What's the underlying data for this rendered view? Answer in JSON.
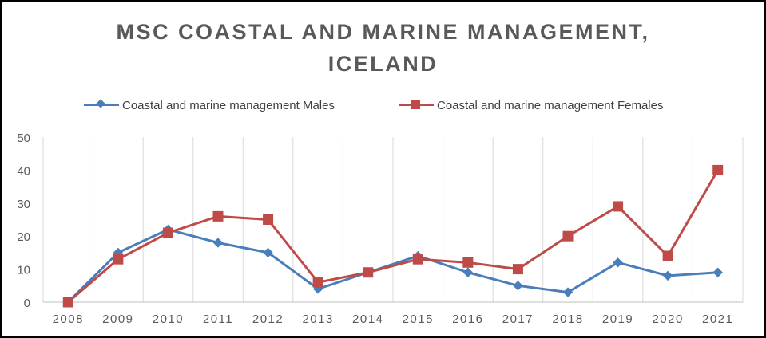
{
  "chart_data": {
    "type": "line",
    "title_lines": [
      "MSC COASTAL  AND  MARINE  MANAGEMENT,",
      "ICELAND"
    ],
    "xlabel": "",
    "ylabel": "",
    "categories": [
      "2008",
      "2009",
      "2010",
      "2011",
      "2012",
      "2013",
      "2014",
      "2015",
      "2016",
      "2017",
      "2018",
      "2019",
      "2020",
      "2021"
    ],
    "ylim": [
      0,
      50
    ],
    "yticks": [
      "0",
      "10",
      "20",
      "30",
      "40",
      "50"
    ],
    "grid": "vertical",
    "legend_position": "top",
    "series": [
      {
        "name": "Coastal and marine management Males",
        "color": "#4A7EBB",
        "marker": "diamond",
        "values": [
          0,
          15,
          22,
          18,
          15,
          4,
          9,
          14,
          9,
          5,
          3,
          12,
          8,
          9
        ]
      },
      {
        "name": "Coastal and marine management Females",
        "color": "#BE4B48",
        "marker": "square",
        "values": [
          0,
          13,
          21,
          26,
          25,
          6,
          9,
          13,
          12,
          10,
          20,
          29,
          14,
          40
        ]
      }
    ]
  }
}
